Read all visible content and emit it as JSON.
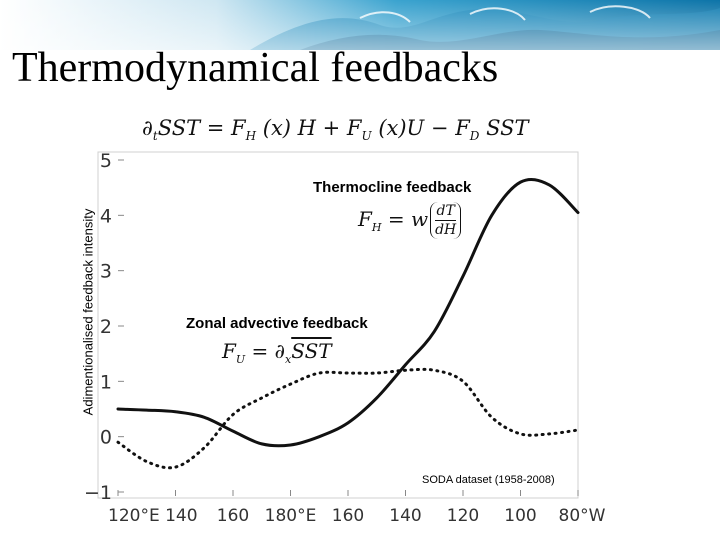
{
  "slide": {
    "title": "Thermodynamical feedbacks",
    "equation": {
      "lhs": "∂",
      "lhs_sub": "t",
      "main": "SST = F",
      "fh_sub": "H",
      "mid1": " (x) H + F",
      "fu_sub": "U",
      "mid2": " (x)U − F",
      "fd_sub": "D",
      "tail": " SST"
    },
    "dataset_note": "SODA dataset (1958-2008)"
  },
  "annotations": {
    "thermocline": {
      "label": "Thermocline feedback",
      "formula_lhs": "F",
      "formula_sub": "H",
      "formula_eq": " = w",
      "frac_num": "dT",
      "frac_den": "dH"
    },
    "zonal": {
      "label": "Zonal advective feedback",
      "formula_lhs": "F",
      "formula_sub": "U",
      "formula_eq": " = ∂",
      "formula_sub2": "x",
      "formula_tail": "SST"
    }
  },
  "chart_data": {
    "type": "line",
    "ylabel": "Adimentionalised feedback intensity",
    "xlabel": "",
    "ylim": [
      -1,
      5
    ],
    "yticks": [
      -1,
      0,
      1,
      2,
      3,
      4,
      5
    ],
    "xlim": [
      120,
      280
    ],
    "xticks": [
      120,
      140,
      160,
      180,
      200,
      220,
      240,
      260,
      280
    ],
    "xticklabels": [
      "120°E 140",
      "",
      "160",
      "180°E",
      "160",
      "140",
      "120",
      "100",
      "80°W"
    ],
    "series": [
      {
        "style": "solid",
        "x": [
          120,
          130,
          140,
          150,
          160,
          170,
          180,
          190,
          200,
          210,
          220,
          230,
          240,
          250,
          260,
          270,
          280
        ],
        "y": [
          0.5,
          0.48,
          0.45,
          0.35,
          0.1,
          -0.13,
          -0.15,
          0.0,
          0.25,
          0.7,
          1.3,
          1.9,
          2.9,
          4.0,
          4.6,
          4.55,
          4.05
        ]
      },
      {
        "style": "dotted",
        "x": [
          120,
          130,
          140,
          150,
          160,
          170,
          180,
          190,
          200,
          210,
          220,
          230,
          240,
          250,
          260,
          270,
          280
        ],
        "y": [
          -0.1,
          -0.45,
          -0.55,
          -0.2,
          0.4,
          0.7,
          0.95,
          1.15,
          1.15,
          1.15,
          1.2,
          1.2,
          1.0,
          0.35,
          0.05,
          0.05,
          0.12
        ]
      }
    ],
    "grid": false,
    "legend": "none"
  }
}
